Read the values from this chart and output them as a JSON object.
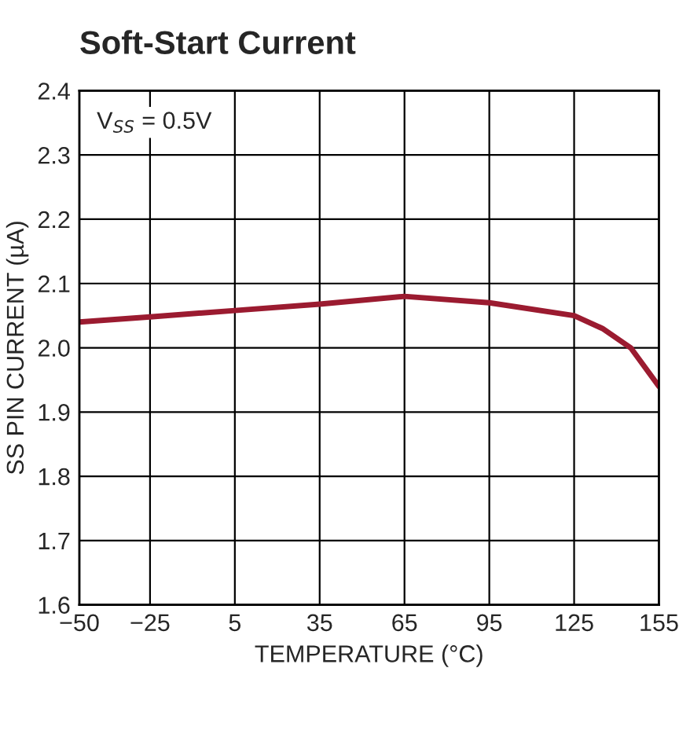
{
  "chart_data": {
    "type": "line",
    "title": "Soft-Start Current",
    "xlabel": "TEMPERATURE (°C)",
    "ylabel": "SS PIN CURRENT (µA)",
    "x": [
      -50,
      -25,
      5,
      35,
      65,
      95,
      125,
      135,
      145,
      155
    ],
    "series": [
      {
        "color": "#9b1b30",
        "values": [
          2.04,
          2.048,
          2.058,
          2.068,
          2.08,
          2.07,
          2.05,
          2.03,
          2.0,
          1.94
        ]
      }
    ],
    "xlim": [
      -50,
      155
    ],
    "xticks": [
      {
        "value": -50,
        "label": "−50"
      },
      {
        "value": -25,
        "label": "−25"
      },
      5,
      35,
      65,
      95,
      125,
      155
    ],
    "ylim": [
      1.6,
      2.4
    ],
    "yticks": [
      1.6,
      1.7,
      1.8,
      1.9,
      {
        "value": 2.0,
        "label": "2.0"
      },
      2.1,
      2.2,
      2.3,
      2.4
    ],
    "grid": true,
    "annotations": [
      "V$_{SS}$ = 0.5V"
    ]
  }
}
